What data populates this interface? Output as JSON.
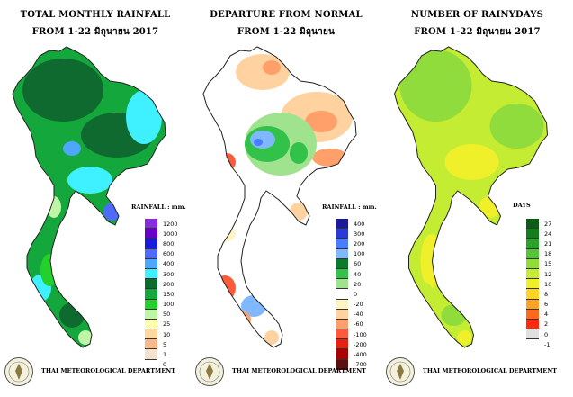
{
  "panels": [
    {
      "title_line1": "TOTAL MONTHLY RAINFALL",
      "title_line2": "FROM 1-22 มิถุนายน 2017",
      "unit_label": "RAINFALL : mm.",
      "legend": [
        {
          "value": "1200",
          "color": "#8a2be2"
        },
        {
          "value": "1000",
          "color": "#6a00c8"
        },
        {
          "value": "800",
          "color": "#1a1adc"
        },
        {
          "value": "600",
          "color": "#4f6bff"
        },
        {
          "value": "400",
          "color": "#4fa6ff"
        },
        {
          "value": "300",
          "color": "#3ff0ff"
        },
        {
          "value": "200",
          "color": "#0f6a30"
        },
        {
          "value": "150",
          "color": "#14a83c"
        },
        {
          "value": "100",
          "color": "#22d12a"
        },
        {
          "value": "50",
          "color": "#bff5a6"
        },
        {
          "value": "25",
          "color": "#ffffb0"
        },
        {
          "value": "10",
          "color": "#ffd7a0"
        },
        {
          "value": "5",
          "color": "#f9b98a"
        },
        {
          "value": "1",
          "color": "#f6e3cf"
        },
        {
          "value": "0",
          "color": "#ffffff"
        }
      ],
      "department": "THAI METEOROLOGICAL DEPARTMENT"
    },
    {
      "title_line1": "DEPARTURE FROM NORMAL",
      "title_line2": "FROM 1-22 มิถุนายน",
      "unit_label": "RAINFALL : mm.",
      "legend": [
        {
          "value": "400",
          "color": "#1a1a9a"
        },
        {
          "value": "300",
          "color": "#2a3ad8"
        },
        {
          "value": "200",
          "color": "#4a7cff"
        },
        {
          "value": "100",
          "color": "#7fb8ff"
        },
        {
          "value": "60",
          "color": "#0c7a2c"
        },
        {
          "value": "40",
          "color": "#32c24a"
        },
        {
          "value": "20",
          "color": "#9fe38e"
        },
        {
          "value": "0",
          "color": "#ffffff"
        },
        {
          "value": "-20",
          "color": "#fff4c4"
        },
        {
          "value": "-40",
          "color": "#ffd2a0"
        },
        {
          "value": "-60",
          "color": "#ff9f6a"
        },
        {
          "value": "-100",
          "color": "#ff5a3a"
        },
        {
          "value": "-200",
          "color": "#e82010"
        },
        {
          "value": "-400",
          "color": "#a80000"
        },
        {
          "value": "-700",
          "color": "#5a1010"
        }
      ],
      "department": "THAI METEOROLOGICAL DEPARTMENT"
    },
    {
      "title_line1": "NUMBER OF RAINYDAYS",
      "title_line2": "FROM 1-22 มิถุนายน 2017",
      "unit_label": "DAYS",
      "legend": [
        {
          "value": "27",
          "color": "#0a5e14"
        },
        {
          "value": "24",
          "color": "#137f1c"
        },
        {
          "value": "21",
          "color": "#2aa32a"
        },
        {
          "value": "18",
          "color": "#55c43a"
        },
        {
          "value": "15",
          "color": "#8fdc3c"
        },
        {
          "value": "12",
          "color": "#c4ec32"
        },
        {
          "value": "10",
          "color": "#f0f02a"
        },
        {
          "value": "8",
          "color": "#ffd426"
        },
        {
          "value": "6",
          "color": "#ffa420"
        },
        {
          "value": "4",
          "color": "#ff6a1a"
        },
        {
          "value": "2",
          "color": "#ff2a10"
        },
        {
          "value": "0",
          "color": "#e0e0e0"
        },
        {
          "value": "-1",
          "color": "#ffffff"
        }
      ],
      "department": "THAI METEOROLOGICAL DEPARTMENT"
    }
  ]
}
